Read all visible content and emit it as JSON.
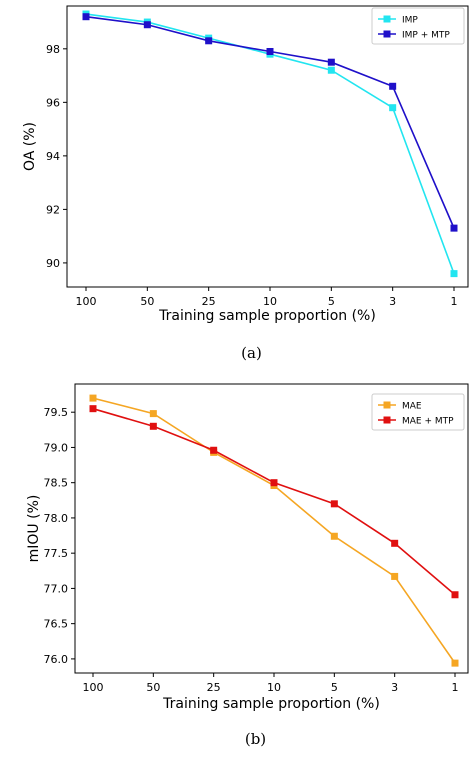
{
  "chart_data": [
    {
      "type": "line",
      "caption": "(a)",
      "categories": [
        "100",
        "50",
        "25",
        "10",
        "5",
        "3",
        "1"
      ],
      "xlabel": "Training sample proportion (%)",
      "ylabel": "OA (%)",
      "ylim": [
        89.1,
        99.6
      ],
      "yticks": [
        90,
        92,
        94,
        96,
        98
      ],
      "ytick_labels": [
        "90",
        "92",
        "94",
        "96",
        "98"
      ],
      "legend_position": "top-right",
      "grid": false,
      "series": [
        {
          "name": "IMP",
          "color": "#22e5f0",
          "values": [
            99.3,
            99.0,
            98.4,
            97.8,
            97.2,
            95.8,
            89.6
          ]
        },
        {
          "name": "IMP + MTP",
          "color": "#1f10c9",
          "values": [
            99.2,
            98.9,
            98.3,
            97.9,
            97.5,
            96.6,
            91.3
          ]
        }
      ]
    },
    {
      "type": "line",
      "caption": "(b)",
      "categories": [
        "100",
        "50",
        "25",
        "10",
        "5",
        "3",
        "1"
      ],
      "xlabel": "Training sample proportion (%)",
      "ylabel": "mIOU (%)",
      "ylim": [
        75.8,
        79.9
      ],
      "yticks": [
        76.0,
        76.5,
        77.0,
        77.5,
        78.0,
        78.5,
        79.0,
        79.5
      ],
      "ytick_labels": [
        "76.0",
        "76.5",
        "77.0",
        "77.5",
        "78.0",
        "78.5",
        "79.0",
        "79.5"
      ],
      "legend_position": "top-right",
      "grid": false,
      "series": [
        {
          "name": "MAE",
          "color": "#f5a623",
          "values": [
            79.7,
            79.48,
            78.93,
            78.46,
            77.74,
            77.17,
            75.94
          ]
        },
        {
          "name": "MAE + MTP",
          "color": "#e01010",
          "values": [
            79.55,
            79.3,
            78.96,
            78.5,
            78.2,
            77.64,
            76.91
          ]
        }
      ]
    }
  ]
}
